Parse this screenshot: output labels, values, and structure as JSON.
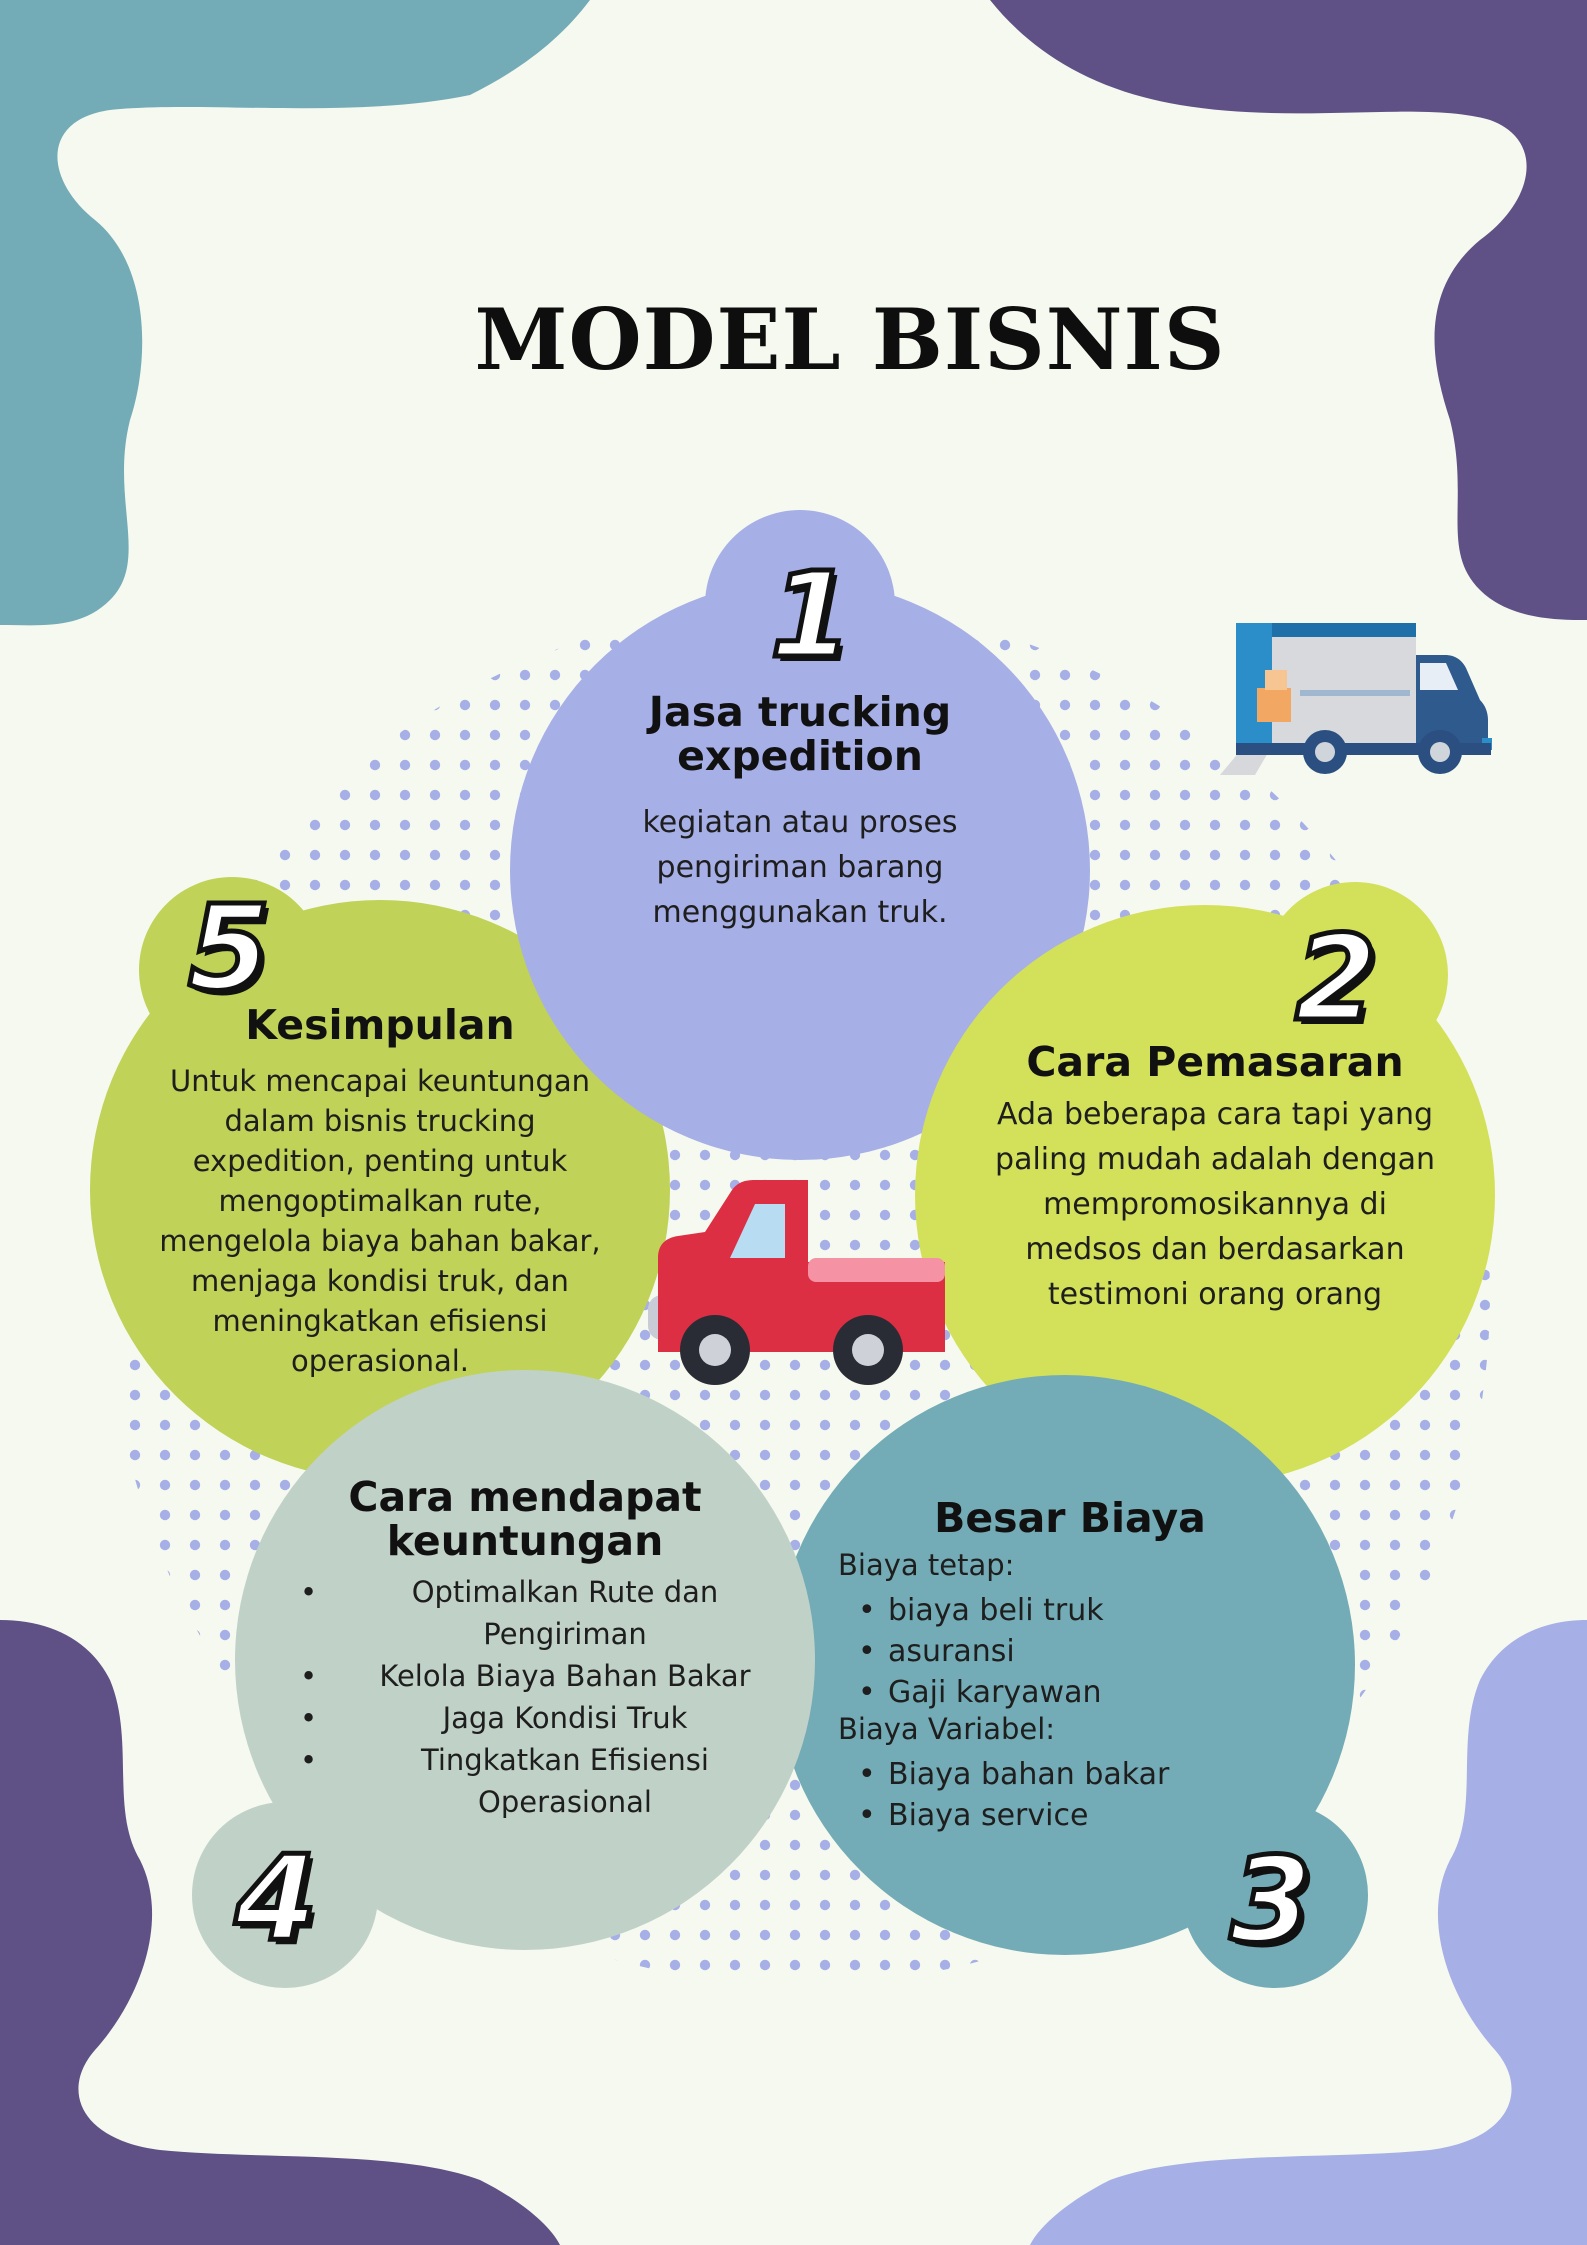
{
  "title": "MODEL BISNIS",
  "colors": {
    "background": "#f6f9ef",
    "teal": "#73acb6",
    "purple": "#5f5186",
    "lavender": "#a6afe6",
    "lime": "#d3e05a",
    "olive": "#c0d257",
    "sage": "#c0d2c8",
    "dots": "#a6afe6",
    "truck_red": "#dc2f43"
  },
  "sections": [
    {
      "number": "1",
      "heading": [
        "Jasa trucking",
        "expedition"
      ],
      "text": [
        "kegiatan atau proses",
        "pengiriman barang",
        "menggunakan truk."
      ]
    },
    {
      "number": "2",
      "heading": [
        "Cara Pemasaran"
      ],
      "text": [
        "Ada beberapa cara tapi yang",
        "paling mudah adalah dengan",
        "mempromosikannya di",
        "medsos dan berdasarkan",
        "testimoni orang orang"
      ]
    },
    {
      "number": "3",
      "heading": [
        "Besar Biaya"
      ],
      "fixed_label": "Biaya tetap:",
      "fixed_items": [
        "biaya beli truk",
        "asuransi",
        "Gaji karyawan"
      ],
      "variable_label": "Biaya Variabel:",
      "variable_items": [
        "Biaya bahan bakar",
        "Biaya service"
      ]
    },
    {
      "number": "4",
      "heading": [
        "Cara mendapat",
        "keuntungan"
      ],
      "items": [
        [
          "Optimalkan Rute dan",
          "Pengiriman"
        ],
        [
          "Kelola Biaya Bahan Bakar"
        ],
        [
          "Jaga Kondisi Truk"
        ],
        [
          "Tingkatkan Efisiensi",
          "Operasional"
        ]
      ]
    },
    {
      "number": "5",
      "heading": [
        "Kesimpulan"
      ],
      "text": [
        "Untuk mencapai keuntungan",
        "dalam bisnis trucking",
        "expedition, penting untuk",
        "mengoptimalkan rute,",
        "mengelola biaya bahan bakar,",
        "menjaga kondisi truk, dan",
        "meningkatkan efisiensi",
        "operasional."
      ]
    }
  ],
  "icons": [
    "box-truck-icon",
    "pickup-truck-icon"
  ]
}
